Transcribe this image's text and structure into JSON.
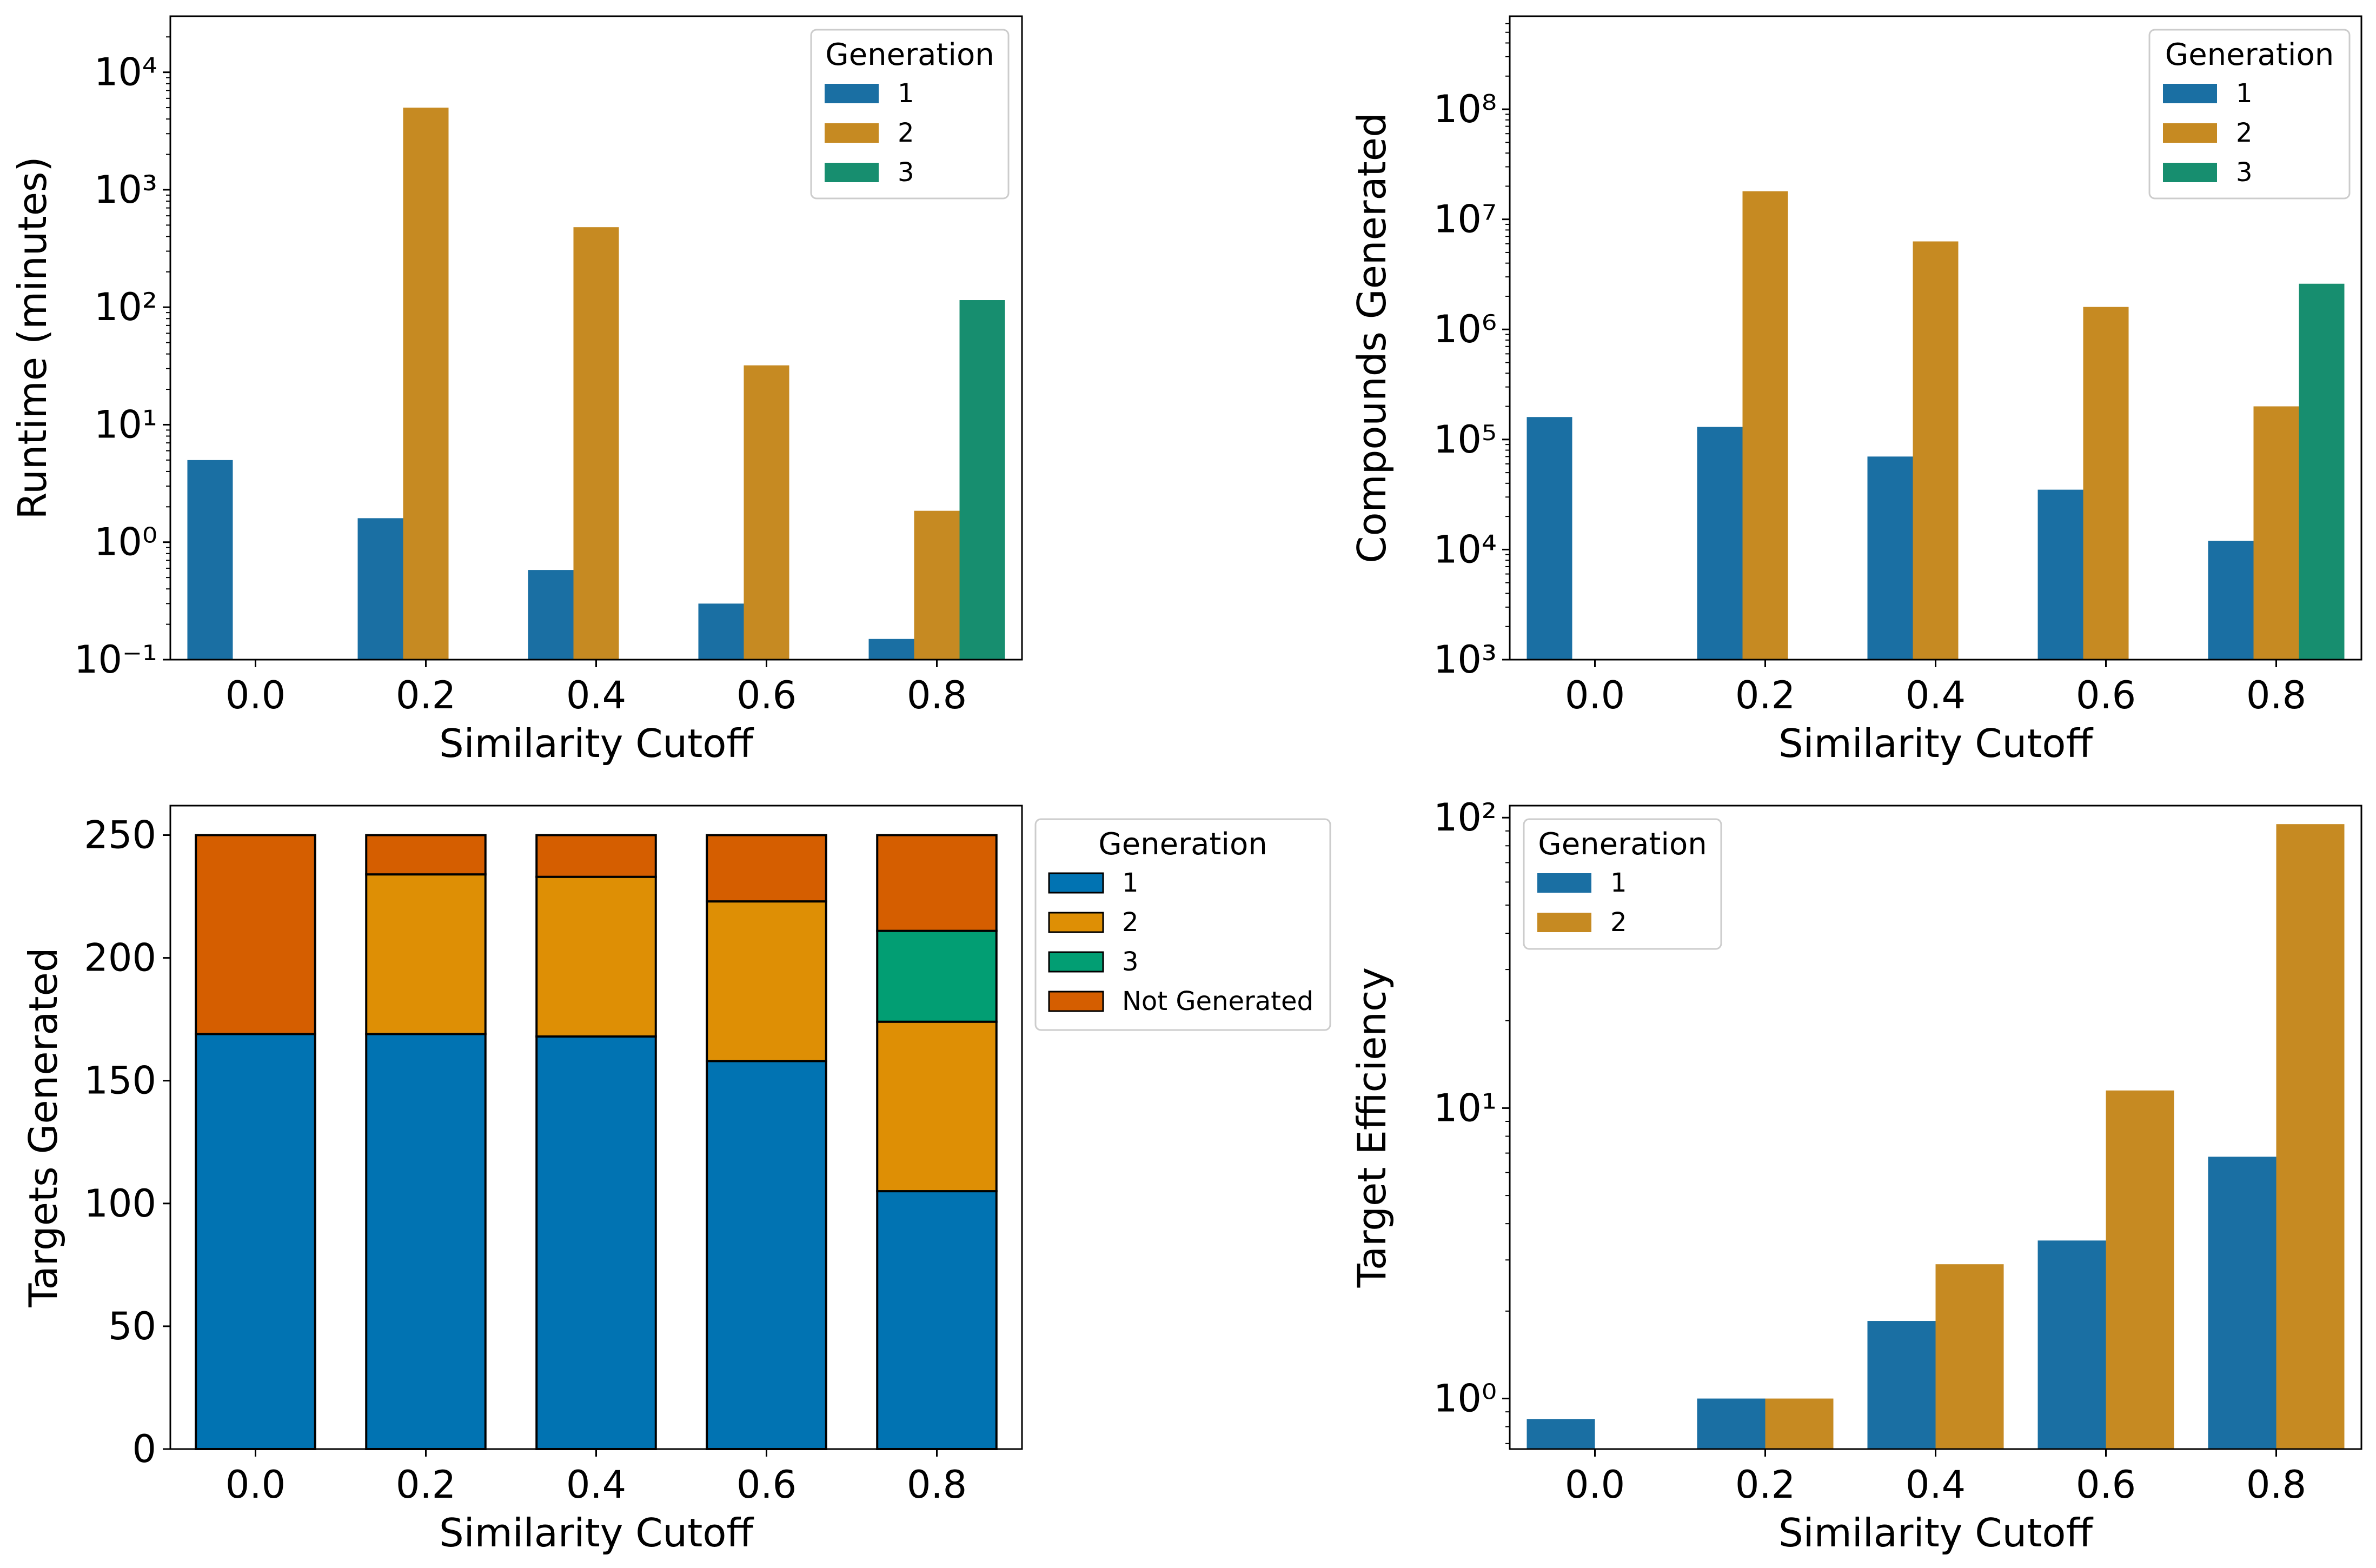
{
  "colors": {
    "gen1": "#1a6fa3",
    "gen2": "#c68a22",
    "gen3": "#178e6f",
    "stack_gen1": "#0173b2",
    "stack_gen2": "#de8f05",
    "stack_gen3": "#029e73",
    "stack_not_generated": "#d55e00"
  },
  "chart_data": [
    {
      "type": "bar",
      "scale": "log",
      "categories": [
        "0.0",
        "0.2",
        "0.4",
        "0.6",
        "0.8"
      ],
      "xlabel": "Similarity Cutoff",
      "ylabel": "Runtime (minutes)",
      "ylim": [
        0.1,
        30000
      ],
      "legend": {
        "title": "Generation",
        "placement": "top-right"
      },
      "series": [
        {
          "name": "1",
          "values": [
            5.0,
            1.6,
            0.58,
            0.3,
            0.15
          ]
        },
        {
          "name": "2",
          "values": [
            null,
            5000,
            480,
            32,
            1.85
          ]
        },
        {
          "name": "3",
          "values": [
            null,
            null,
            null,
            null,
            115
          ]
        }
      ]
    },
    {
      "type": "bar",
      "scale": "log",
      "categories": [
        "0.0",
        "0.2",
        "0.4",
        "0.6",
        "0.8"
      ],
      "xlabel": "Similarity Cutoff",
      "ylabel": "Compounds Generated",
      "ylim": [
        1000,
        700000000
      ],
      "legend": {
        "title": "Generation",
        "placement": "top-right"
      },
      "series": [
        {
          "name": "1",
          "values": [
            160000,
            130000,
            70000,
            35000,
            12000
          ]
        },
        {
          "name": "2",
          "values": [
            null,
            18000000,
            6300000,
            1600000,
            200000
          ]
        },
        {
          "name": "3",
          "values": [
            null,
            null,
            null,
            null,
            2600000
          ]
        }
      ]
    },
    {
      "type": "bar",
      "stacked": true,
      "categories": [
        "0.0",
        "0.2",
        "0.4",
        "0.6",
        "0.8"
      ],
      "xlabel": "Similarity Cutoff",
      "ylabel": "Targets Generated",
      "ylim": [
        0,
        262
      ],
      "yticks": [
        0,
        50,
        100,
        150,
        200,
        250
      ],
      "legend": {
        "title": "Generation",
        "placement": "outside-right"
      },
      "series": [
        {
          "name": "1",
          "values": [
            169,
            169,
            168,
            158,
            105
          ]
        },
        {
          "name": "2",
          "values": [
            0,
            65,
            65,
            65,
            69
          ]
        },
        {
          "name": "3",
          "values": [
            0,
            0,
            0,
            0,
            37
          ]
        },
        {
          "name": "Not Generated",
          "values": [
            81,
            16,
            17,
            27,
            39
          ]
        }
      ]
    },
    {
      "type": "bar",
      "scale": "log",
      "categories": [
        "0.0",
        "0.2",
        "0.4",
        "0.6",
        "0.8"
      ],
      "xlabel": "Similarity Cutoff",
      "ylabel": "Target Efficiency",
      "ylim": [
        0.67,
        110
      ],
      "legend": {
        "title": "Generation",
        "placement": "top-left"
      },
      "series": [
        {
          "name": "1",
          "values": [
            0.85,
            1.0,
            1.85,
            3.5,
            6.8
          ]
        },
        {
          "name": "2",
          "values": [
            null,
            1.0,
            2.9,
            11.5,
            95
          ]
        }
      ]
    }
  ]
}
